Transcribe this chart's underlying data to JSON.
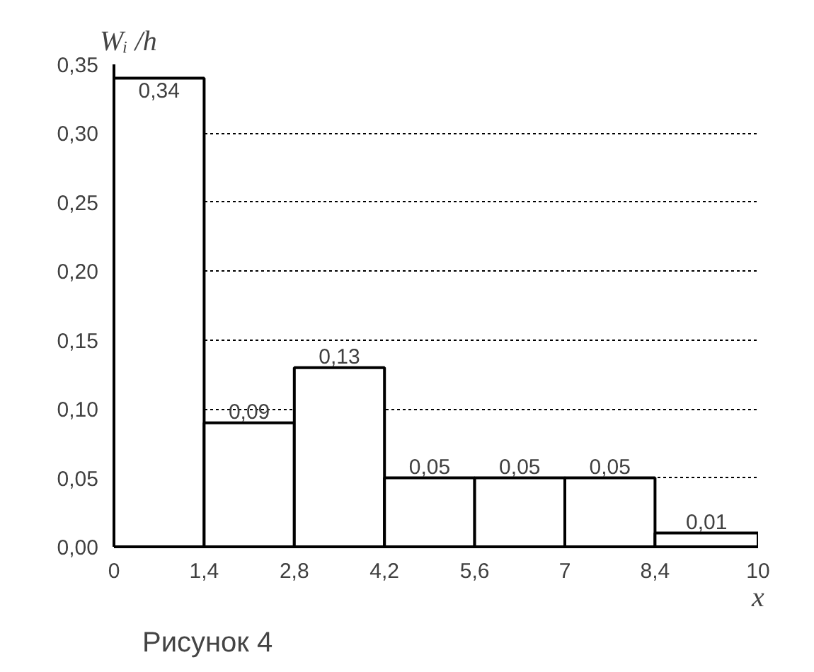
{
  "chart_data": {
    "type": "histogram",
    "xlabel": "x",
    "ylabel": "Wᵢ /h",
    "bins": [
      0,
      1.4,
      2.8,
      4.2,
      5.6,
      7,
      8.4,
      10
    ],
    "values": [
      0.34,
      0.09,
      0.13,
      0.05,
      0.05,
      0.05,
      0.01
    ],
    "value_labels": [
      "0,34",
      "0,09",
      "0,13",
      "0,05",
      "0,05",
      "0,05",
      "0,01"
    ],
    "color": "#ffffff",
    "ylim": [
      0,
      0.35
    ],
    "yticks": [
      {
        "value": 0,
        "label": "0,00"
      },
      {
        "value": 0.05,
        "label": "0,05"
      },
      {
        "value": 0.1,
        "label": "0,10"
      },
      {
        "value": 0.15,
        "label": "0,15"
      },
      {
        "value": 0.2,
        "label": "0,20"
      },
      {
        "value": 0.25,
        "label": "0,25"
      },
      {
        "value": 0.3,
        "label": "0,30"
      },
      {
        "value": 0.35,
        "label": "0,35"
      }
    ],
    "xlim": [
      0,
      10
    ],
    "xticks": [
      0,
      {
        "value": 1.4,
        "label": "1,4"
      },
      {
        "value": 2.8,
        "label": "2,8"
      },
      {
        "value": 4.2,
        "label": "4,2"
      },
      {
        "value": 5.6,
        "label": "5,6"
      },
      7,
      {
        "value": 8.4,
        "label": "8,4"
      },
      10
    ],
    "grid": "y",
    "annotations": [
      "Рисунок 4"
    ]
  }
}
